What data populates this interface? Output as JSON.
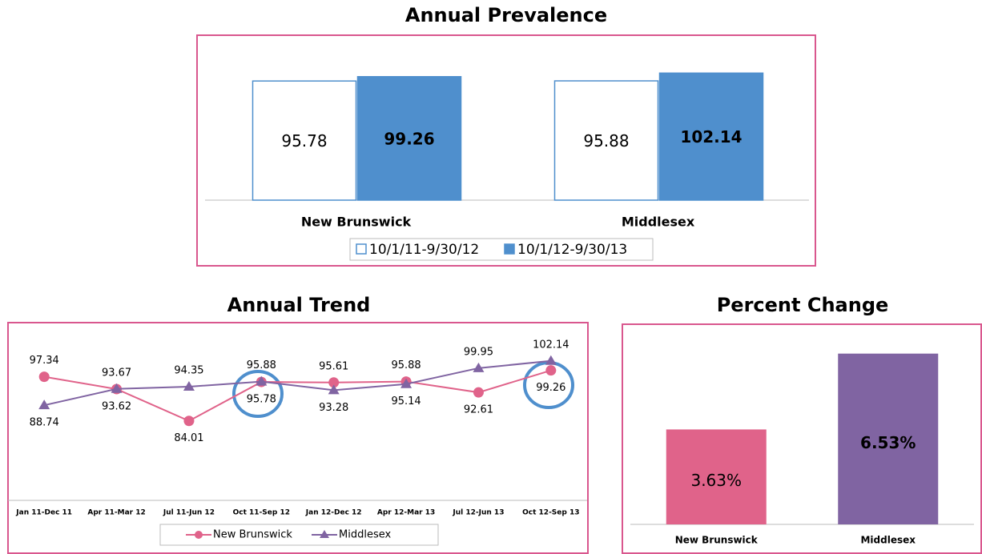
{
  "chart_data": [
    {
      "type": "bar",
      "title": "Annual Prevalence",
      "categories": [
        "New Brunswick",
        "Middlesex"
      ],
      "series": [
        {
          "name": "10/1/11-9/30/12",
          "color": "#ffffff",
          "edgecolor": "#4f8fcd",
          "values": [
            95.78,
            95.88
          ]
        },
        {
          "name": "10/1/12-9/30/13",
          "color": "#4f8fcd",
          "edgecolor": "#4f8fcd",
          "values": [
            99.26,
            102.14
          ]
        }
      ],
      "ylim": [
        0,
        130
      ],
      "legend": "bottom"
    },
    {
      "type": "line",
      "title": "Annual Trend",
      "categories": [
        "Jan 11-Dec 11",
        "Apr 11-Mar 12",
        "Jul 11-Jun 12",
        "Oct 11-Sep 12",
        "Jan 12-Dec 12",
        "Apr 12-Mar 13",
        "Jul 12-Jun 13",
        "Oct 12-Sep 13"
      ],
      "series": [
        {
          "name": "New Brunswick",
          "color": "#e0638a",
          "marker": "circle",
          "values": [
            97.34,
            93.62,
            84.01,
            95.78,
            95.61,
            95.88,
            92.61,
            99.26
          ]
        },
        {
          "name": "Middlesex",
          "color": "#8064a2",
          "marker": "triangle",
          "values": [
            88.74,
            93.67,
            94.35,
            95.88,
            93.28,
            95.14,
            99.95,
            102.14
          ]
        }
      ],
      "ylim": [
        60,
        112
      ],
      "legend": "bottom"
    },
    {
      "type": "bar",
      "title": "Percent Change",
      "categories": [
        "New Brunswick",
        "Middlesex"
      ],
      "values": [
        3.63,
        6.53
      ],
      "value_labels": [
        "3.63%",
        "6.53%"
      ],
      "colors": [
        "#e0638a",
        "#8064a2"
      ],
      "ylim": [
        0,
        7.5
      ]
    }
  ]
}
